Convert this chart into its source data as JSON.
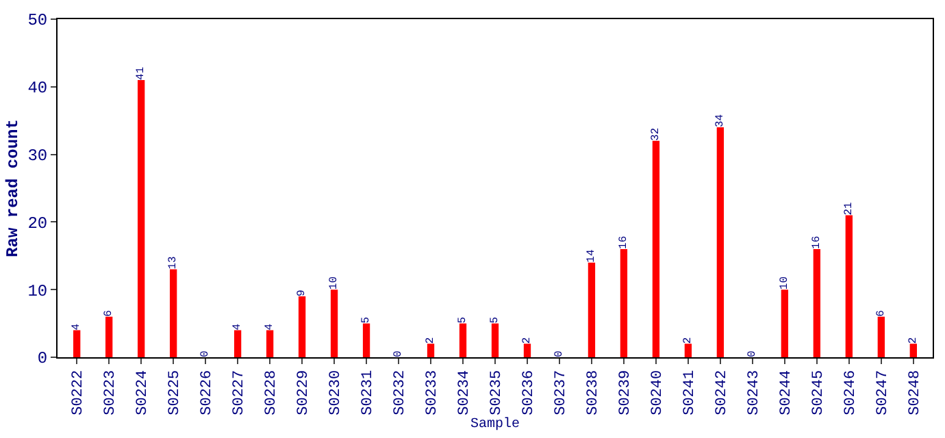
{
  "chart_data": {
    "type": "bar",
    "xlabel": "Sample",
    "ylabel": "Raw read count",
    "categories": [
      "S0222",
      "S0223",
      "S0224",
      "S0225",
      "S0226",
      "S0227",
      "S0228",
      "S0229",
      "S0230",
      "S0231",
      "S0232",
      "S0233",
      "S0234",
      "S0235",
      "S0236",
      "S0237",
      "S0238",
      "S0239",
      "S0240",
      "S0241",
      "S0242",
      "S0243",
      "S0244",
      "S0245",
      "S0246",
      "S0247",
      "S0248"
    ],
    "values": [
      4,
      6,
      41,
      13,
      0,
      4,
      4,
      9,
      10,
      5,
      0,
      2,
      5,
      5,
      2,
      0,
      14,
      16,
      32,
      2,
      34,
      0,
      10,
      16,
      21,
      6,
      2
    ],
    "color": "#ff0000",
    "ylim": [
      0,
      50
    ],
    "yticks": [
      0,
      10,
      20,
      30,
      40,
      50
    ],
    "data_labels": true
  }
}
